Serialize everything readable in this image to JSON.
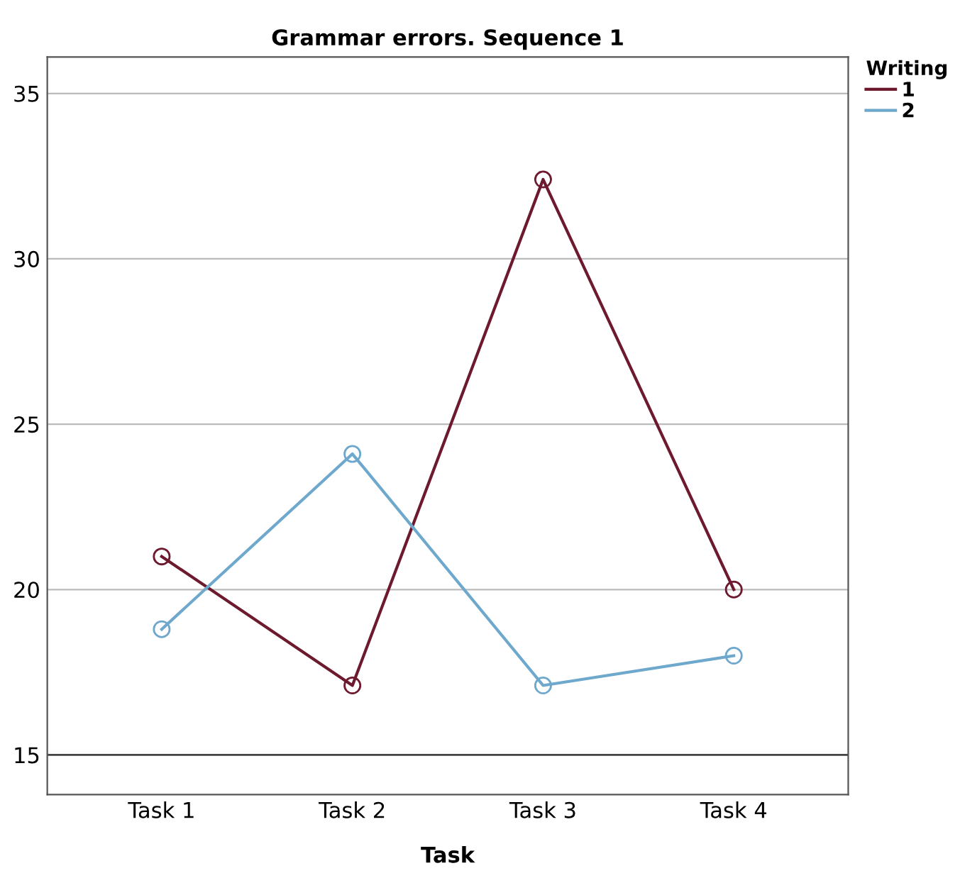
{
  "chart_data": {
    "type": "line",
    "title": "Grammar errors. Sequence 1",
    "xlabel": "Task",
    "legend_title": "Writing",
    "categories": [
      "Task 1",
      "Task 2",
      "Task 3",
      "Task 4"
    ],
    "series": [
      {
        "name": "1",
        "color": "#6e1a2e",
        "values": [
          21.0,
          17.1,
          32.4,
          20.0
        ]
      },
      {
        "name": "2",
        "color": "#6ea8cc",
        "values": [
          18.8,
          24.1,
          17.1,
          18.0
        ]
      }
    ],
    "ylim": [
      13.8,
      36.1
    ],
    "yticks": [
      15,
      20,
      25,
      30,
      35
    ],
    "grid": "y",
    "legend": "top right",
    "marker": "circle",
    "line_style": "solid",
    "ref_lines": [
      {
        "axis": "y",
        "value": 15,
        "color": "#444444"
      }
    ]
  }
}
